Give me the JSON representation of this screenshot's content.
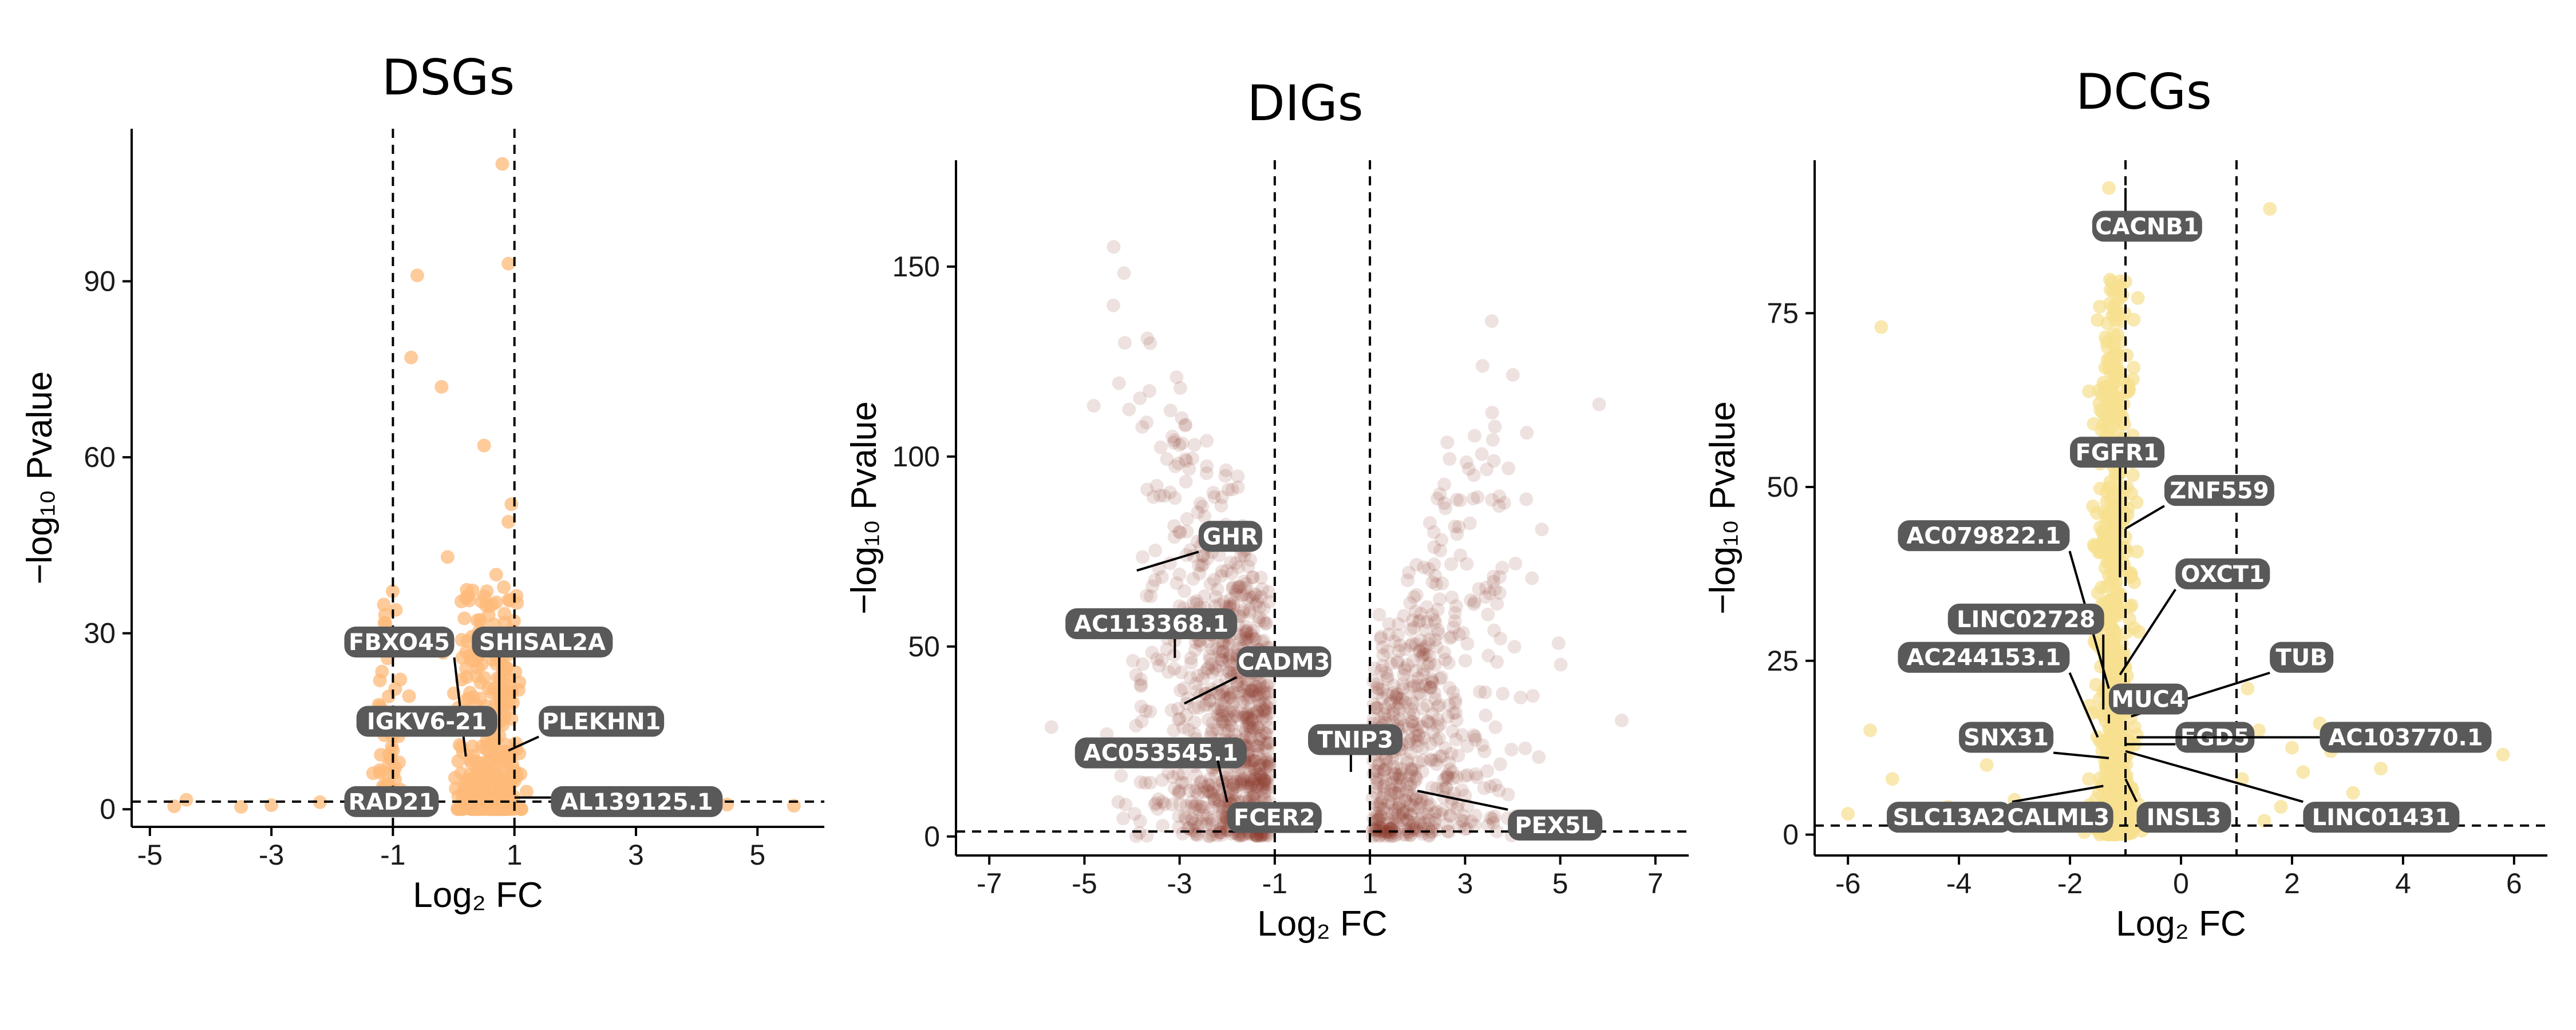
{
  "chart_data": [
    {
      "type": "scatter",
      "title": "DSGs",
      "xlabel": "Log₂ FC",
      "ylabel": "−log₁₀ Pvalue",
      "xlim": [
        -5.3,
        6.1
      ],
      "ylim": [
        -3,
        116
      ],
      "xticks": [
        -5,
        -3,
        -1,
        1,
        3,
        5
      ],
      "xtick_labels": [
        "-5",
        "-3",
        "-1",
        "1",
        "3",
        "5"
      ],
      "yticks": [
        0,
        30,
        60,
        90
      ],
      "ytick_labels": [
        "0",
        "30",
        "60",
        "90"
      ],
      "fc_threshold": [
        -1,
        1
      ],
      "p_threshold": 1.3,
      "point_color": "#fdb97a",
      "point_opacity": 0.75,
      "generator": {
        "seed": 11,
        "count": 420,
        "spread": 0.35,
        "ymax": 38
      },
      "extra_points": [
        [
          0.8,
          110
        ],
        [
          -0.6,
          91
        ],
        [
          0.9,
          93
        ],
        [
          -0.7,
          77
        ],
        [
          -0.2,
          72
        ],
        [
          0.5,
          62
        ],
        [
          0.95,
          52
        ],
        [
          0.9,
          49
        ],
        [
          -0.1,
          43
        ],
        [
          0.7,
          40
        ],
        [
          0.2,
          36
        ],
        [
          -0.8,
          30
        ],
        [
          -1.0,
          10
        ],
        [
          -0.9,
          8
        ],
        [
          1.1,
          6
        ],
        [
          1.2,
          3
        ],
        [
          -1.3,
          2
        ],
        [
          2.4,
          1.5
        ],
        [
          3.1,
          1.1
        ],
        [
          4.0,
          1.3
        ],
        [
          4.5,
          0.8
        ],
        [
          5.6,
          0.6
        ],
        [
          -4.6,
          0.5
        ],
        [
          -4.4,
          1.6
        ],
        [
          -2.2,
          1.2
        ],
        [
          -3.0,
          0.7
        ],
        [
          -3.5,
          0.4
        ],
        [
          1.8,
          0.9
        ],
        [
          2.9,
          0.5
        ],
        [
          -1.6,
          0.8
        ]
      ],
      "labels": [
        {
          "text": "FBXO45",
          "x": -1.8,
          "y": 28.5,
          "px": 0.2,
          "py": 9
        },
        {
          "text": "SHISAL2A",
          "x": 0.3,
          "y": 28.5,
          "px": 0.75,
          "py": 11
        },
        {
          "text": "IGKV6-21",
          "x": -1.6,
          "y": 15,
          "px": -0.1,
          "py": 13
        },
        {
          "text": "PLEKHN1",
          "x": 1.4,
          "y": 15,
          "px": 0.9,
          "py": 10
        },
        {
          "text": "RAD21",
          "x": -1.8,
          "y": 1.3,
          "px": -0.7,
          "py": 2
        },
        {
          "text": "AL139125.1",
          "x": 1.6,
          "y": 1.3,
          "px": 1.0,
          "py": 2
        }
      ]
    },
    {
      "type": "scatter",
      "title": "DIGs",
      "xlabel": "Log₂ FC",
      "ylabel": "−log₁₀ Pvalue",
      "xlim": [
        -7.7,
        7.7
      ],
      "ylim": [
        -5,
        178
      ],
      "xticks": [
        -7,
        -5,
        -3,
        -1,
        1,
        3,
        5,
        7
      ],
      "xtick_labels": [
        "-7",
        "-5",
        "-3",
        "-1",
        "1",
        "3",
        "5",
        "7"
      ],
      "yticks": [
        0,
        50,
        100,
        150
      ],
      "ytick_labels": [
        "0",
        "50",
        "100",
        "150"
      ],
      "fc_threshold": [
        -1,
        1
      ],
      "p_threshold": 1.3,
      "point_color": "#8c3b30",
      "point_opacity": 0.15,
      "generator": {
        "seed": 29,
        "count": 1500,
        "spread": 1.25,
        "ymax": 150
      },
      "extra_points": [],
      "labels": [
        {
          "text": "GHR",
          "x": -2.6,
          "y": 79,
          "px": -3.9,
          "py": 70
        },
        {
          "text": "AC113368.1",
          "x": -5.4,
          "y": 56,
          "px": -3.1,
          "py": 47
        },
        {
          "text": "CADM3",
          "x": -1.8,
          "y": 46,
          "px": -2.9,
          "py": 35
        },
        {
          "text": "TNIP3",
          "x": -0.3,
          "y": 25.5,
          "px": 0.6,
          "py": 17
        },
        {
          "text": "AC053545.1",
          "x": -5.2,
          "y": 22,
          "px": -2.7,
          "py": 22
        },
        {
          "text": "FCER2",
          "x": -2.0,
          "y": 5,
          "px": -2.2,
          "py": 20
        },
        {
          "text": "PEX5L",
          "x": 3.9,
          "y": 3,
          "px": 2.0,
          "py": 12
        }
      ]
    },
    {
      "type": "scatter",
      "title": "DCGs",
      "xlabel": "Log₂ FC",
      "ylabel": "−log₁₀ Pvalue",
      "xlim": [
        -6.6,
        6.6
      ],
      "ylim": [
        -3,
        97
      ],
      "xticks": [
        -6,
        -4,
        -2,
        0,
        2,
        4,
        6
      ],
      "xtick_labels": [
        "-6",
        "-4",
        "-2",
        "0",
        "2",
        "4",
        "6"
      ],
      "yticks": [
        0,
        25,
        50,
        75
      ],
      "ytick_labels": [
        "0",
        "25",
        "50",
        "75"
      ],
      "fc_threshold": [
        -1,
        1
      ],
      "p_threshold": 1.3,
      "point_color": "#f7e08f",
      "point_opacity": 0.7,
      "generator": {
        "seed": 53,
        "count": 650,
        "spread": 0.18,
        "ymax": 80
      },
      "extra_points": [
        [
          -5.4,
          73
        ],
        [
          1.6,
          90
        ],
        [
          -1.3,
          93
        ],
        [
          5.8,
          11.5
        ],
        [
          -5.6,
          15
        ],
        [
          -5.2,
          8
        ],
        [
          -4.2,
          4
        ],
        [
          -3.5,
          10
        ],
        [
          2.7,
          12
        ],
        [
          3.1,
          6
        ],
        [
          2.2,
          9
        ],
        [
          1.4,
          15
        ],
        [
          1.8,
          4
        ],
        [
          3.6,
          9.5
        ],
        [
          4.1,
          3
        ],
        [
          1.2,
          21
        ],
        [
          2.5,
          16
        ],
        [
          -3.0,
          5
        ],
        [
          -4.8,
          1.5
        ],
        [
          -6.0,
          3
        ],
        [
          1.1,
          8
        ],
        [
          2.0,
          12.5
        ],
        [
          1.5,
          2
        ]
      ],
      "labels": [
        {
          "text": "CACNB1",
          "x": -1.6,
          "y": 87.5,
          "px": -1.0,
          "py": 93
        },
        {
          "text": "FGFR1",
          "x": -2.0,
          "y": 55,
          "px": -1.1,
          "py": 37
        },
        {
          "text": "ZNF559",
          "x": -0.3,
          "y": 49.5,
          "px": -1.0,
          "py": 44
        },
        {
          "text": "AC079822.1",
          "x": -5.1,
          "y": 43,
          "px": -1.3,
          "py": 21
        },
        {
          "text": "OXCT1",
          "x": -0.1,
          "y": 37.5,
          "px": -1.1,
          "py": 23
        },
        {
          "text": "LINC02728",
          "x": -4.2,
          "y": 31,
          "px": -1.4,
          "py": 18
        },
        {
          "text": "AC244153.1",
          "x": -5.1,
          "y": 25.5,
          "px": -1.5,
          "py": 14
        },
        {
          "text": "TUB",
          "x": 1.6,
          "y": 25.5,
          "px": -0.9,
          "py": 17
        },
        {
          "text": "MUC4",
          "x": -1.3,
          "y": 19.5,
          "px": -1.3,
          "py": 16
        },
        {
          "text": "SNX31",
          "x": -4.0,
          "y": 14,
          "px": -1.3,
          "py": 11
        },
        {
          "text": "FGD5",
          "x": -0.1,
          "y": 14,
          "px": -1.0,
          "py": 13
        },
        {
          "text": "AC103770.1",
          "x": 2.5,
          "y": 14,
          "px": -0.8,
          "py": 14
        },
        {
          "text": "SLC13A2",
          "x": -5.3,
          "y": 2.5,
          "px": -1.4,
          "py": 7
        },
        {
          "text": "CALML3",
          "x": -3.2,
          "y": 2.5,
          "px": -1.3,
          "py": 3
        },
        {
          "text": "INSL3",
          "x": -0.8,
          "y": 2.5,
          "px": -1.0,
          "py": 8
        },
        {
          "text": "LINC01431",
          "x": 2.2,
          "y": 2.5,
          "px": -1.0,
          "py": 12
        }
      ]
    }
  ]
}
